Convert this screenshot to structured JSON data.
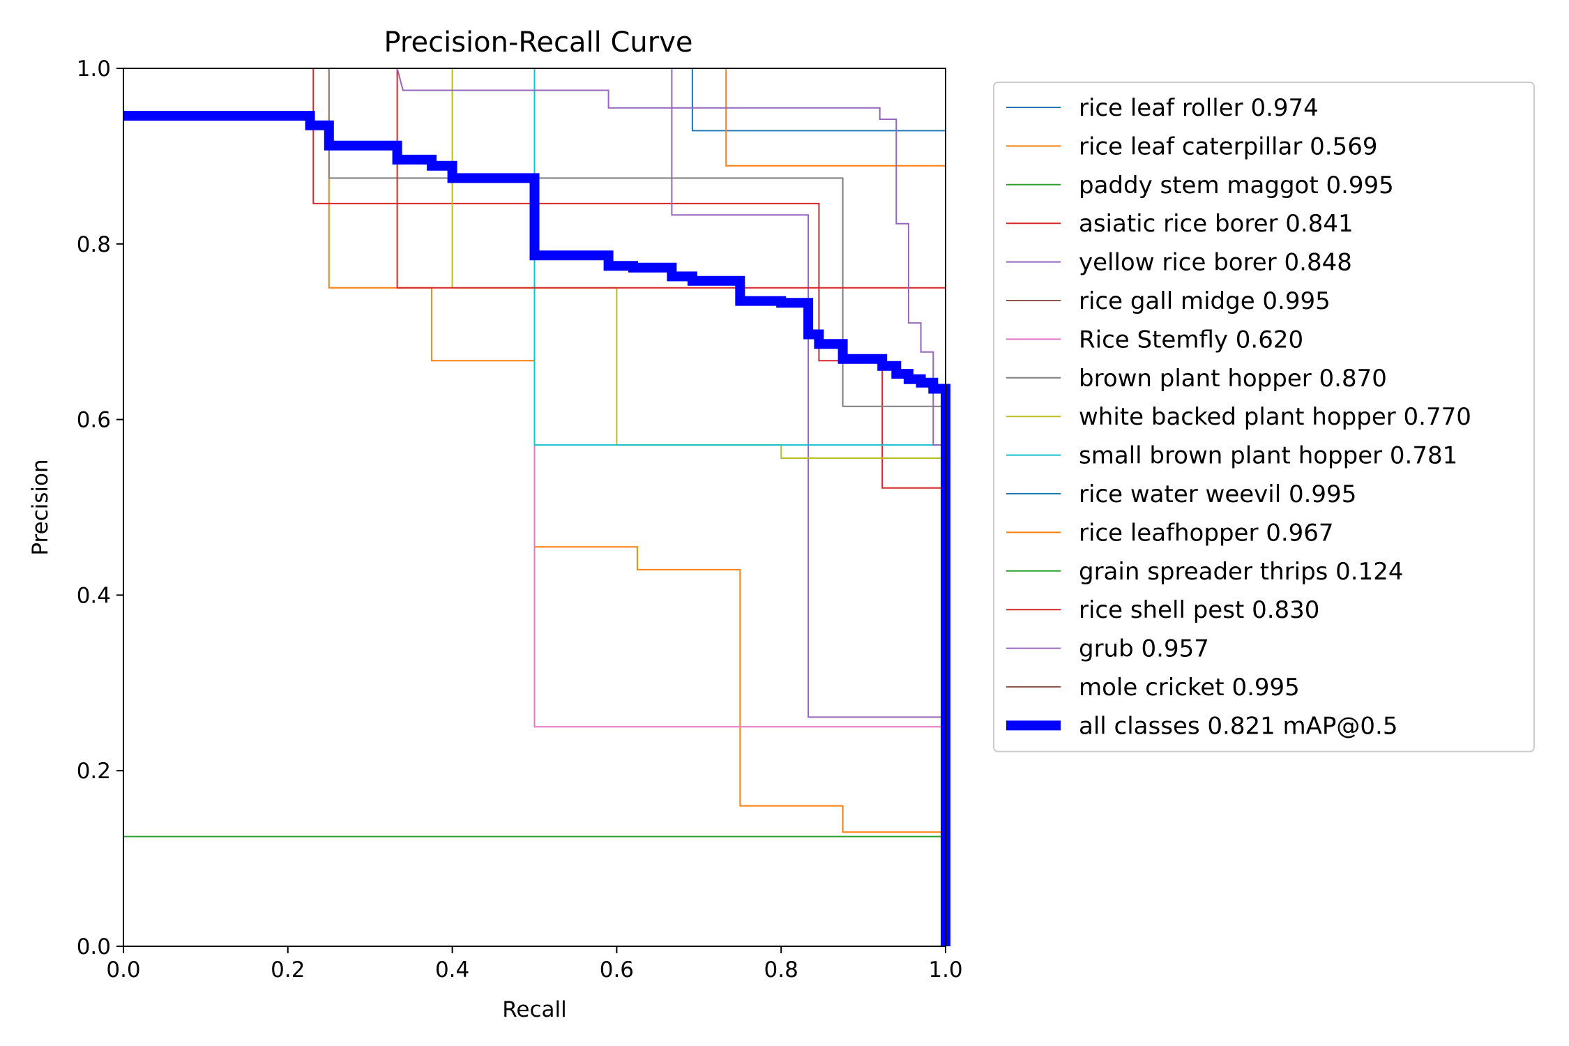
{
  "chart_data": {
    "type": "line",
    "title": "Precision-Recall Curve",
    "xlabel": "Recall",
    "ylabel": "Precision",
    "xlim": [
      0,
      1
    ],
    "ylim": [
      0,
      1
    ],
    "xticks": [
      "0.0",
      "0.2",
      "0.4",
      "0.6",
      "0.8",
      "1.0"
    ],
    "yticks": [
      "0.0",
      "0.2",
      "0.4",
      "0.6",
      "0.8",
      "1.0"
    ],
    "grid": false,
    "legend_position": "outside-right",
    "series": [
      {
        "name": "rice leaf roller 0.974",
        "color": "#1f77b4",
        "width": 1,
        "points": [
          [
            0.692,
            1.0
          ],
          [
            0.692,
            0.929
          ],
          [
            1.0,
            0.929
          ]
        ]
      },
      {
        "name": "rice leaf caterpillar 0.569",
        "color": "#ff7f0e",
        "width": 1,
        "points": [
          [
            0.25,
            1.0
          ],
          [
            0.25,
            0.75
          ],
          [
            0.375,
            0.75
          ],
          [
            0.375,
            0.667
          ],
          [
            0.5,
            0.667
          ],
          [
            0.5,
            0.455
          ],
          [
            0.625,
            0.455
          ],
          [
            0.625,
            0.429
          ],
          [
            0.75,
            0.429
          ],
          [
            0.75,
            0.16
          ],
          [
            0.875,
            0.16
          ],
          [
            0.875,
            0.13
          ],
          [
            1.0,
            0.13
          ]
        ]
      },
      {
        "name": "paddy stem maggot 0.995",
        "color": "#2ca02c",
        "width": 1,
        "points": [
          [
            0.0,
            1.0
          ],
          [
            1.0,
            1.0
          ],
          [
            1.0,
            0.0
          ]
        ]
      },
      {
        "name": "asiatic rice borer 0.841",
        "color": "#d62728",
        "width": 1,
        "points": [
          [
            0.231,
            1.0
          ],
          [
            0.231,
            0.846
          ],
          [
            0.846,
            0.846
          ],
          [
            0.846,
            0.667
          ],
          [
            0.923,
            0.667
          ],
          [
            0.923,
            0.522
          ],
          [
            1.0,
            0.522
          ]
        ]
      },
      {
        "name": "yellow rice borer 0.848",
        "color": "#9467bd",
        "width": 1,
        "points": [
          [
            0.667,
            1.0
          ],
          [
            0.667,
            0.833
          ],
          [
            0.833,
            0.833
          ],
          [
            0.833,
            0.261
          ],
          [
            1.0,
            0.261
          ]
        ]
      },
      {
        "name": "rice gall midge 0.995",
        "color": "#8c564b",
        "width": 1,
        "points": [
          [
            0.0,
            1.0
          ],
          [
            1.0,
            1.0
          ],
          [
            1.0,
            0.0
          ]
        ]
      },
      {
        "name": "Rice Stemfly 0.620",
        "color": "#e377c2",
        "width": 1,
        "points": [
          [
            0.5,
            1.0
          ],
          [
            0.5,
            0.25
          ],
          [
            1.0,
            0.25
          ]
        ]
      },
      {
        "name": "brown plant hopper 0.870",
        "color": "#7f7f7f",
        "width": 1,
        "points": [
          [
            0.25,
            1.0
          ],
          [
            0.25,
            0.875
          ],
          [
            0.875,
            0.875
          ],
          [
            0.875,
            0.615
          ],
          [
            1.0,
            0.615
          ]
        ]
      },
      {
        "name": "white backed plant hopper 0.770",
        "color": "#bcbd22",
        "width": 1,
        "points": [
          [
            0.4,
            1.0
          ],
          [
            0.4,
            0.75
          ],
          [
            0.6,
            0.75
          ],
          [
            0.6,
            0.571
          ],
          [
            0.8,
            0.571
          ],
          [
            0.8,
            0.556
          ],
          [
            1.0,
            0.556
          ]
        ]
      },
      {
        "name": "small brown plant hopper 0.781",
        "color": "#17becf",
        "width": 1,
        "points": [
          [
            0.5,
            1.0
          ],
          [
            0.5,
            0.571
          ],
          [
            1.0,
            0.571
          ]
        ]
      },
      {
        "name": "rice water weevil 0.995",
        "color": "#1f77b4",
        "width": 1,
        "points": [
          [
            0.0,
            1.0
          ],
          [
            1.0,
            1.0
          ],
          [
            1.0,
            0.0
          ]
        ]
      },
      {
        "name": "rice leafhopper 0.967",
        "color": "#ff7f0e",
        "width": 1,
        "points": [
          [
            0.733,
            1.0
          ],
          [
            0.733,
            0.889
          ],
          [
            1.0,
            0.889
          ]
        ]
      },
      {
        "name": "grain spreader thrips 0.124",
        "color": "#2ca02c",
        "width": 1,
        "points": [
          [
            0.0,
            0.125
          ],
          [
            1.0,
            0.125
          ]
        ]
      },
      {
        "name": "rice shell pest 0.830",
        "color": "#d62728",
        "width": 1,
        "points": [
          [
            0.333,
            1.0
          ],
          [
            0.333,
            0.75
          ],
          [
            1.0,
            0.75
          ]
        ]
      },
      {
        "name": "grub 0.957",
        "color": "#9467bd",
        "width": 1,
        "points": [
          [
            0.333,
            1.0
          ],
          [
            0.34,
            0.975
          ],
          [
            0.59,
            0.975
          ],
          [
            0.59,
            0.955
          ],
          [
            0.92,
            0.955
          ],
          [
            0.92,
            0.942
          ],
          [
            0.94,
            0.942
          ],
          [
            0.94,
            0.823
          ],
          [
            0.955,
            0.823
          ],
          [
            0.955,
            0.71
          ],
          [
            0.97,
            0.71
          ],
          [
            0.97,
            0.677
          ],
          [
            0.985,
            0.677
          ],
          [
            0.985,
            0.571
          ],
          [
            1.0,
            0.571
          ]
        ]
      },
      {
        "name": "mole cricket 0.995",
        "color": "#8c564b",
        "width": 1,
        "points": [
          [
            0.0,
            1.0
          ],
          [
            1.0,
            1.0
          ],
          [
            1.0,
            0.0
          ]
        ]
      },
      {
        "name": "all classes 0.821 mAP@0.5",
        "color": "#0000ff",
        "width": 7,
        "points": [
          [
            0.0,
            0.946
          ],
          [
            0.227,
            0.946
          ],
          [
            0.227,
            0.935
          ],
          [
            0.25,
            0.935
          ],
          [
            0.25,
            0.912
          ],
          [
            0.333,
            0.912
          ],
          [
            0.333,
            0.896
          ],
          [
            0.375,
            0.896
          ],
          [
            0.375,
            0.889
          ],
          [
            0.4,
            0.889
          ],
          [
            0.4,
            0.875
          ],
          [
            0.5,
            0.875
          ],
          [
            0.5,
            0.787
          ],
          [
            0.59,
            0.787
          ],
          [
            0.59,
            0.775
          ],
          [
            0.62,
            0.775
          ],
          [
            0.62,
            0.773
          ],
          [
            0.667,
            0.773
          ],
          [
            0.667,
            0.763
          ],
          [
            0.692,
            0.763
          ],
          [
            0.692,
            0.758
          ],
          [
            0.75,
            0.758
          ],
          [
            0.75,
            0.735
          ],
          [
            0.8,
            0.735
          ],
          [
            0.8,
            0.733
          ],
          [
            0.833,
            0.733
          ],
          [
            0.833,
            0.697
          ],
          [
            0.846,
            0.697
          ],
          [
            0.846,
            0.686
          ],
          [
            0.875,
            0.686
          ],
          [
            0.875,
            0.669
          ],
          [
            0.923,
            0.669
          ],
          [
            0.923,
            0.661
          ],
          [
            0.94,
            0.661
          ],
          [
            0.94,
            0.652
          ],
          [
            0.955,
            0.652
          ],
          [
            0.955,
            0.646
          ],
          [
            0.97,
            0.646
          ],
          [
            0.97,
            0.642
          ],
          [
            0.985,
            0.642
          ],
          [
            0.985,
            0.635
          ],
          [
            1.0,
            0.635
          ],
          [
            1.0,
            0.0
          ]
        ]
      }
    ]
  }
}
